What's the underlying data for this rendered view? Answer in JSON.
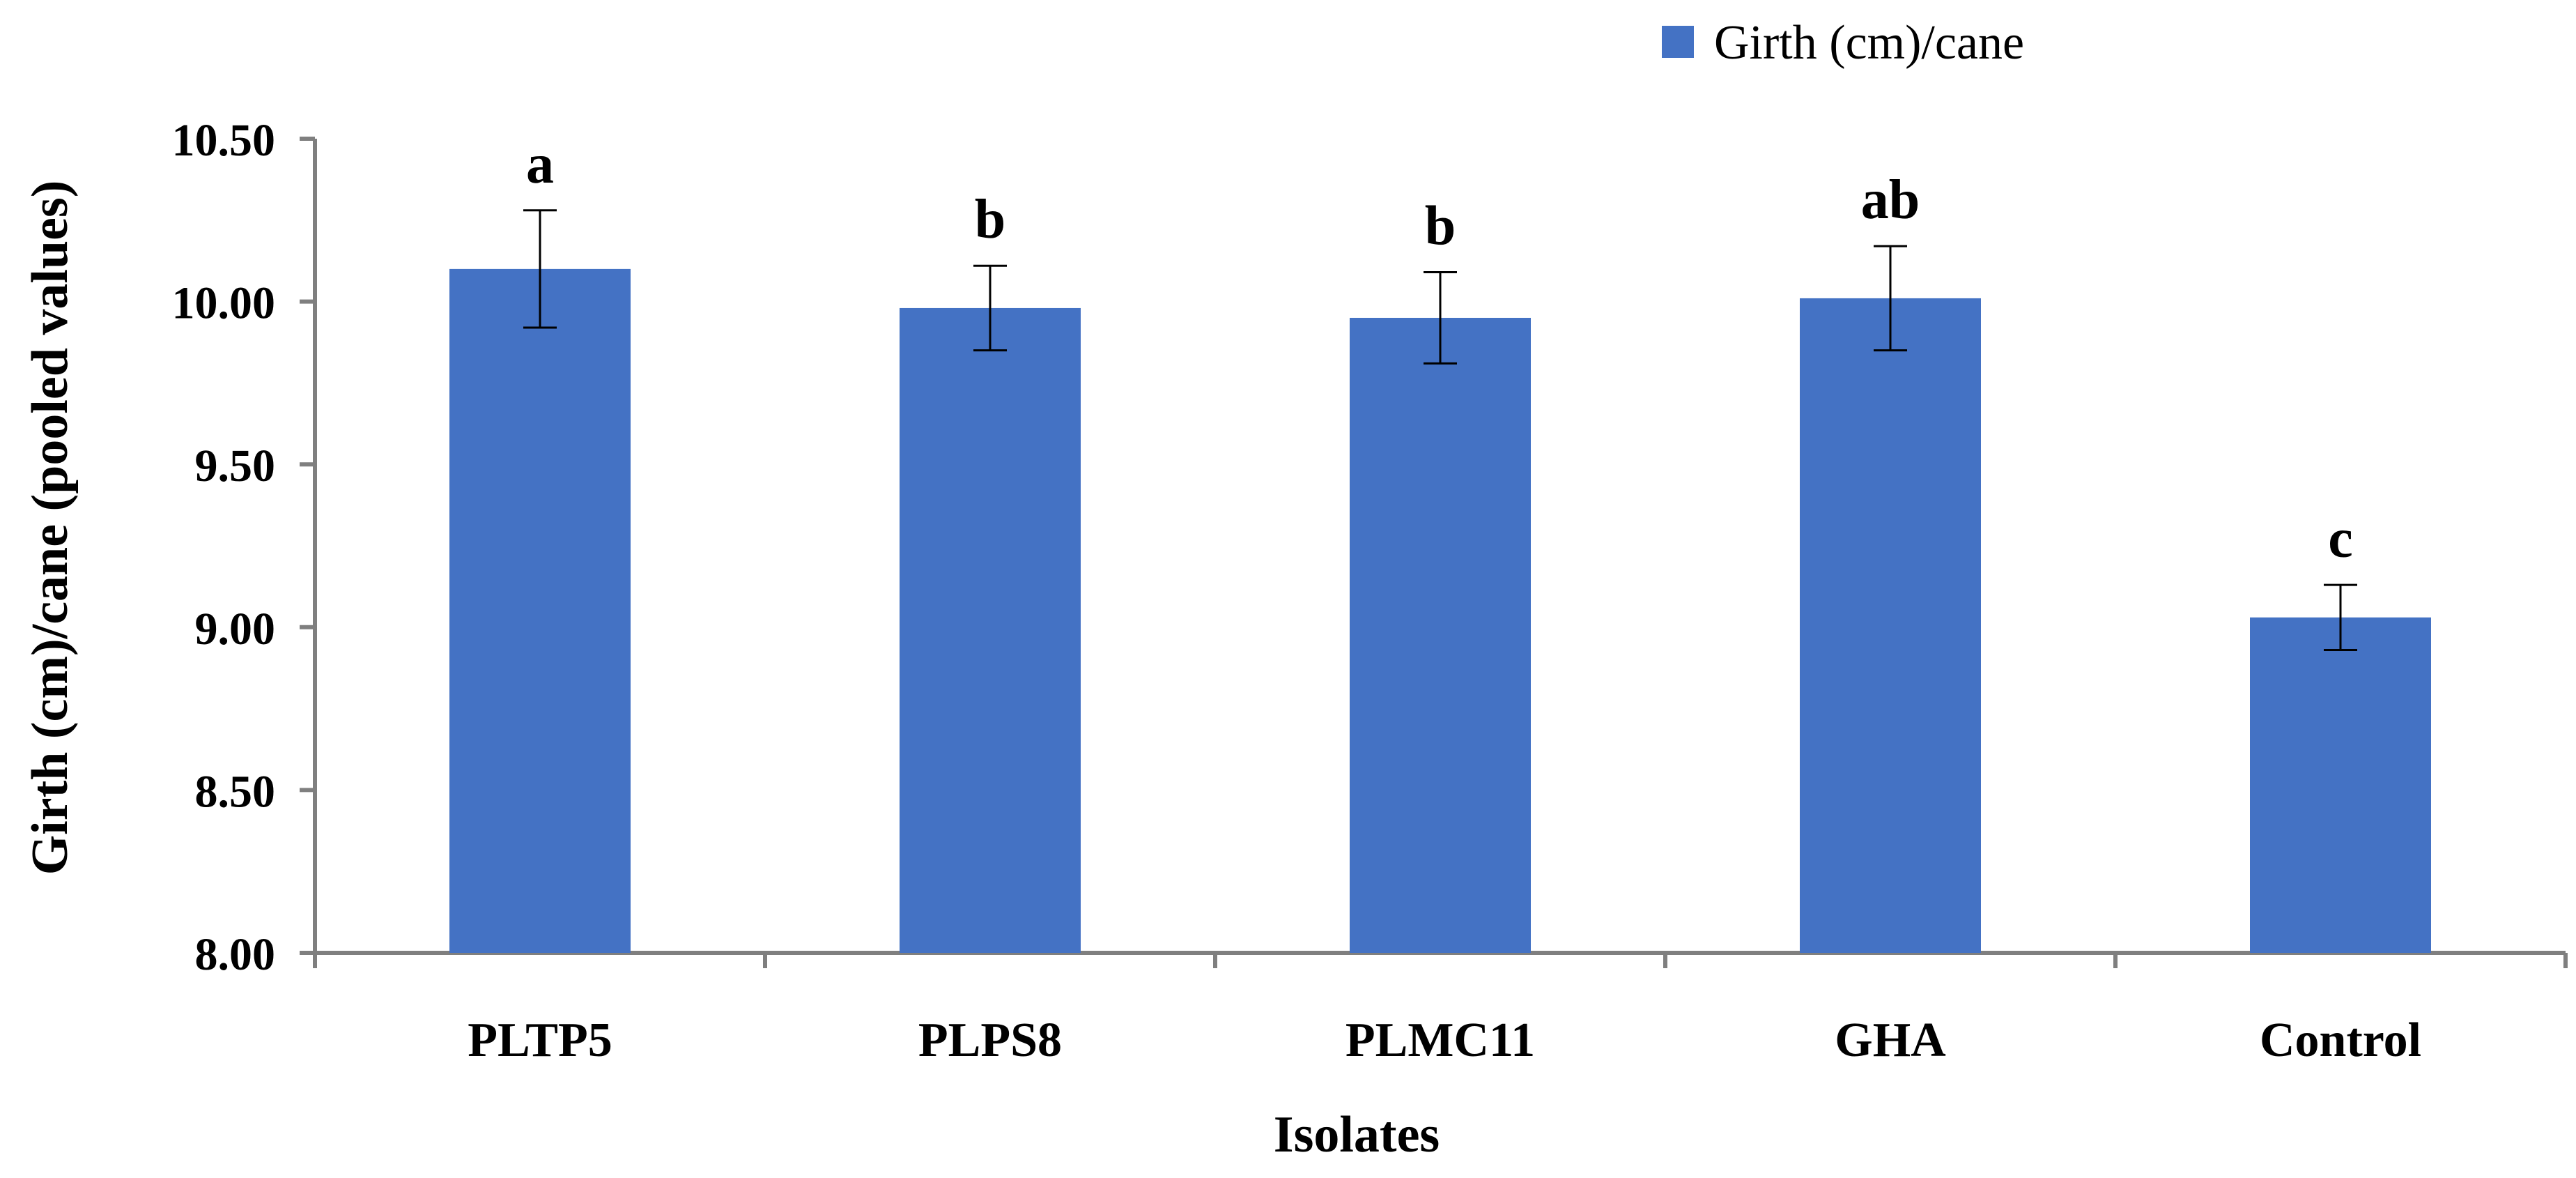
{
  "chart_data": {
    "type": "bar",
    "title": "",
    "xlabel": "Isolates",
    "ylabel": "Girth (cm)/cane (pooled values)",
    "categories": [
      "PLTP5",
      "PLPS8",
      "PLMC11",
      "GHA",
      "Control"
    ],
    "series": [
      {
        "name": "Girth (cm)/cane",
        "color": "#4472C4",
        "values": [
          10.1,
          9.98,
          9.95,
          10.01,
          9.03
        ],
        "error": [
          0.18,
          0.13,
          0.14,
          0.16,
          0.1
        ],
        "significance": [
          "a",
          "b",
          "b",
          "ab",
          "c"
        ]
      }
    ],
    "ylim": [
      8.0,
      10.5
    ],
    "yticks": [
      8.0,
      8.5,
      9.0,
      9.5,
      10.0,
      10.5
    ],
    "ytick_labels": [
      "8.00",
      "8.50",
      "9.00",
      "9.50",
      "10.00",
      "10.50"
    ],
    "grid": false,
    "legend_position": "top-right"
  }
}
